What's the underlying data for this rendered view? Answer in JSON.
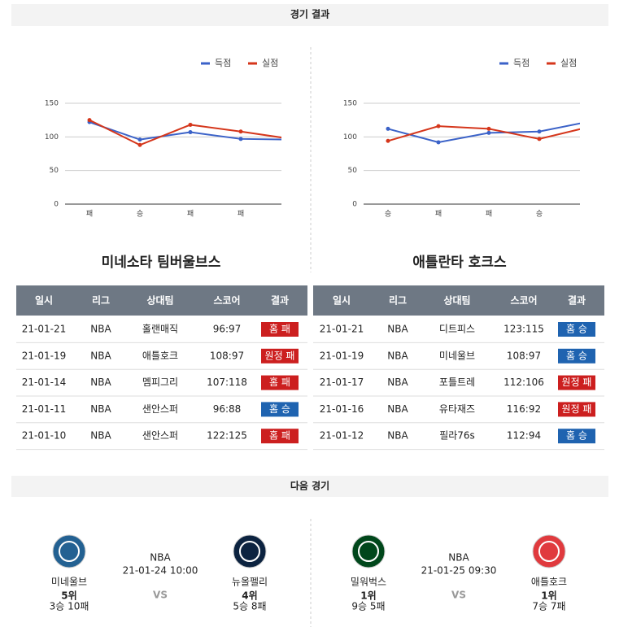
{
  "header": {
    "results_title": "경기 결과",
    "next_title": "다음 경기"
  },
  "chart_data": [
    {
      "type": "line",
      "categories": [
        "패",
        "승",
        "패",
        "패",
        null
      ],
      "series": [
        {
          "name": "득점",
          "color": "#3b62c8",
          "values": [
            122,
            96,
            107,
            97,
            96
          ]
        },
        {
          "name": "실점",
          "color": "#d5361b",
          "values": [
            125,
            88,
            118,
            108,
            97
          ]
        }
      ],
      "ylim": [
        0,
        150
      ],
      "yticks": [
        0,
        50,
        100,
        150
      ],
      "grid": true,
      "legend": "top-right"
    },
    {
      "type": "line",
      "categories": [
        "승",
        "패",
        "패",
        "승",
        null
      ],
      "series": [
        {
          "name": "득점",
          "color": "#3b62c8",
          "values": [
            112,
            92,
            106,
            108,
            123
          ]
        },
        {
          "name": "실점",
          "color": "#d5361b",
          "values": [
            94,
            116,
            112,
            97,
            115
          ]
        }
      ],
      "ylim": [
        0,
        150
      ],
      "yticks": [
        0,
        50,
        100,
        150
      ],
      "grid": true,
      "legend": "top-right"
    }
  ],
  "team_names": [
    "미네소타 팀버울브스",
    "애틀란타 호크스"
  ],
  "tables": [
    {
      "columns": [
        "일시",
        "리그",
        "상대팀",
        "스코어",
        "결과"
      ],
      "rows": [
        [
          "21-01-21",
          "NBA",
          "홀랜매직",
          "96:97",
          "홈 패"
        ],
        [
          "21-01-19",
          "NBA",
          "애틀호크",
          "108:97",
          "원정 패"
        ],
        [
          "21-01-14",
          "NBA",
          "멤피그리",
          "107:118",
          "홈 패"
        ],
        [
          "21-01-11",
          "NBA",
          "샌안스퍼",
          "96:88",
          "홈 승"
        ],
        [
          "21-01-10",
          "NBA",
          "샌안스퍼",
          "122:125",
          "홈 패"
        ]
      ],
      "result_colors": [
        "#cc1f1f",
        "#cc1f1f",
        "#cc1f1f",
        "#1f63b0",
        "#cc1f1f"
      ]
    },
    {
      "columns": [
        "일시",
        "리그",
        "상대팀",
        "스코어",
        "결과"
      ],
      "rows": [
        [
          "21-01-21",
          "NBA",
          "디트피스",
          "123:115",
          "홈 승"
        ],
        [
          "21-01-19",
          "NBA",
          "미네울브",
          "108:97",
          "홈 승"
        ],
        [
          "21-01-17",
          "NBA",
          "포틀트레",
          "112:106",
          "원정 패"
        ],
        [
          "21-01-16",
          "NBA",
          "유타재즈",
          "116:92",
          "원정 패"
        ],
        [
          "21-01-12",
          "NBA",
          "필라76s",
          "112:94",
          "홈 승"
        ]
      ],
      "result_colors": [
        "#1f63b0",
        "#1f63b0",
        "#cc1f1f",
        "#cc1f1f",
        "#1f63b0"
      ]
    }
  ],
  "next_games": [
    {
      "league": "NBA",
      "datetime": "21-01-24 10:00",
      "vs": "VS",
      "home": {
        "name": "미네울브",
        "rank": "5위",
        "record": "3승 10패",
        "color": "#236192"
      },
      "away": {
        "name": "뉴올펠리",
        "rank": "4위",
        "record": "5승 8패",
        "color": "#0c2340"
      }
    },
    {
      "league": "NBA",
      "datetime": "21-01-25 09:30",
      "vs": "VS",
      "home": {
        "name": "밀워벅스",
        "rank": "1위",
        "record": "9승 5패",
        "color": "#00471b"
      },
      "away": {
        "name": "애틀호크",
        "rank": "1위",
        "record": "7승 7패",
        "color": "#e03a3e"
      }
    }
  ]
}
